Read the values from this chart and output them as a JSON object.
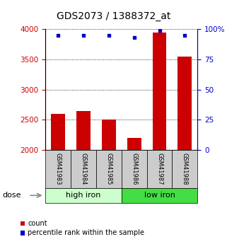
{
  "title": "GDS2073 / 1388372_at",
  "samples": [
    "GSM41983",
    "GSM41984",
    "GSM41985",
    "GSM41986",
    "GSM41987",
    "GSM41988"
  ],
  "counts": [
    2600,
    2650,
    2500,
    2200,
    3950,
    3550
  ],
  "percentiles": [
    95,
    95,
    95,
    93,
    99,
    95
  ],
  "ymin": 2000,
  "ymax": 4000,
  "yticks": [
    2000,
    2500,
    3000,
    3500,
    4000
  ],
  "pct_yticks": [
    0,
    25,
    50,
    75,
    100
  ],
  "bar_color": "#cc0000",
  "dot_color": "#0000cc",
  "high_iron_color": "#ccffcc",
  "low_iron_color": "#44dd44",
  "group_labels": [
    "high iron",
    "low iron"
  ],
  "group_ranges": [
    [
      0,
      3
    ],
    [
      3,
      6
    ]
  ],
  "legend_count_label": "count",
  "legend_pct_label": "percentile rank within the sample",
  "dose_label": "dose",
  "title_fontsize": 10,
  "tick_fontsize": 7.5,
  "group_fontsize": 8,
  "sample_fontsize": 6,
  "legend_fontsize": 7
}
